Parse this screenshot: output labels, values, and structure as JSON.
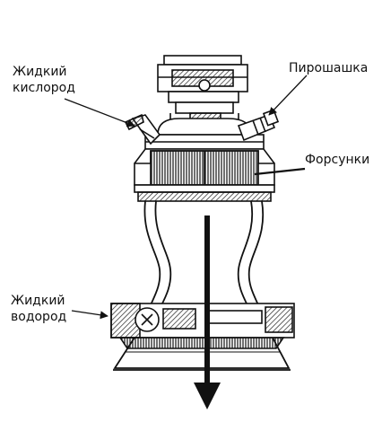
{
  "labels": {
    "oxygen_line1": "Жидкий",
    "oxygen_line2": "кислород",
    "igniter": "Пирошашка",
    "injectors": "Форсунки",
    "hydrogen_line1": "Жидкий",
    "hydrogen_line2": "водород"
  },
  "colors": {
    "ink": "#111111",
    "background": "#ffffff"
  }
}
